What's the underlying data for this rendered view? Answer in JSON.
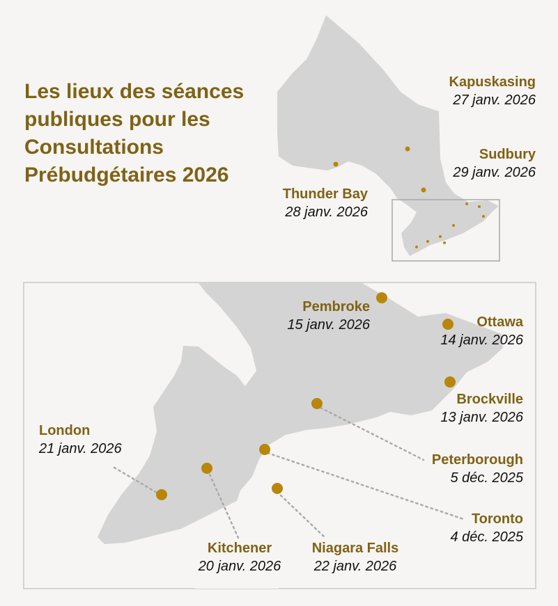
{
  "title_lines": [
    "Les lieux des séances",
    "publiques pour les",
    "Consultations",
    "Prébudgétaires 2026"
  ],
  "colors": {
    "land": "#d4d4d4",
    "water": "#f6f5f3",
    "accent": "#7f6216",
    "marker": "#b8860b",
    "text": "#111111",
    "leader": "#aaaaaa"
  },
  "overview_locations": [
    {
      "name": "Kapuskasing",
      "date": "27 janv. 2026"
    },
    {
      "name": "Sudbury",
      "date": "29 janv. 2026"
    },
    {
      "name": "Thunder Bay",
      "date": "28 janv. 2026"
    }
  ],
  "detail_locations": [
    {
      "name": "Pembroke",
      "date": "15 janv. 2026"
    },
    {
      "name": "Ottawa",
      "date": "14 janv. 2026"
    },
    {
      "name": "Brockville",
      "date": "13 janv. 2026"
    },
    {
      "name": "London",
      "date": "21 janv. 2026"
    },
    {
      "name": "Peterborough",
      "date": "5 déc. 2025"
    },
    {
      "name": "Toronto",
      "date": "4 déc. 2025"
    },
    {
      "name": "Kitchener",
      "date": "20 janv. 2026"
    },
    {
      "name": "Niagara Falls",
      "date": "22 janv. 2026"
    }
  ]
}
